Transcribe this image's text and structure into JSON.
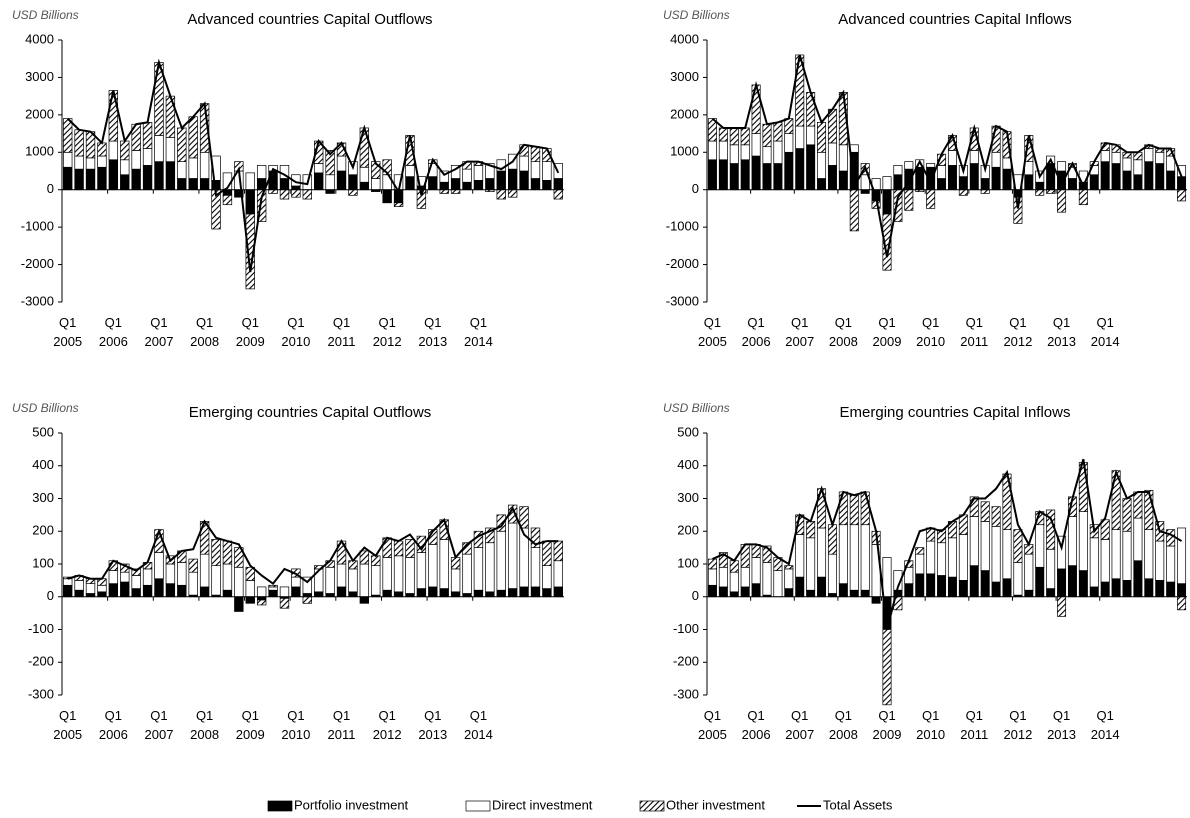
{
  "chart_data": [
    {
      "type": "bar",
      "title": "Advanced countries Capital Outflows",
      "y_label": "USD Billions",
      "stacked": true,
      "categories": [
        "Q1 2005",
        null,
        null,
        null,
        "Q1 2006",
        null,
        null,
        null,
        "Q1 2007",
        null,
        null,
        null,
        "Q1 2008",
        null,
        null,
        null,
        "Q1 2009",
        null,
        null,
        null,
        "Q1 2010",
        null,
        null,
        null,
        "Q1 2011",
        null,
        null,
        null,
        "Q1 2012",
        null,
        null,
        null,
        "Q1 2013",
        null,
        null,
        null,
        "Q1 2014",
        null,
        null,
        null,
        null,
        null,
        null,
        null
      ],
      "ylim": [
        -3000,
        4000
      ],
      "yticks": [
        -3000,
        -2000,
        -1000,
        0,
        1000,
        2000,
        3000,
        4000
      ],
      "series": [
        {
          "name": "Portfolio investment",
          "color": "#000000",
          "values": [
            600,
            550,
            550,
            600,
            800,
            400,
            550,
            650,
            750,
            750,
            300,
            300,
            300,
            250,
            -150,
            -200,
            -650,
            300,
            500,
            300,
            100,
            0,
            450,
            -100,
            500,
            400,
            200,
            -50,
            -350,
            -350,
            350,
            100,
            350,
            200,
            300,
            200,
            250,
            300,
            500,
            550,
            500,
            300,
            250,
            300
          ]
        },
        {
          "name": "Direct investment",
          "color": "#ffffff",
          "values": [
            400,
            350,
            300,
            300,
            500,
            400,
            500,
            450,
            700,
            650,
            450,
            550,
            700,
            650,
            450,
            500,
            450,
            350,
            150,
            350,
            300,
            400,
            250,
            400,
            400,
            350,
            400,
            300,
            400,
            400,
            300,
            250,
            350,
            300,
            350,
            350,
            400,
            400,
            300,
            400,
            400,
            450,
            500,
            400
          ]
        },
        {
          "name": "Other investment",
          "color": "#000000",
          "hatch": true,
          "values": [
            900,
            700,
            700,
            350,
            1350,
            500,
            700,
            700,
            1950,
            1100,
            900,
            1100,
            1300,
            -1050,
            -250,
            250,
            -2000,
            -850,
            -100,
            -250,
            -200,
            -250,
            600,
            650,
            350,
            -150,
            1050,
            450,
            400,
            -100,
            800,
            -500,
            100,
            -100,
            -100,
            200,
            100,
            -50,
            -250,
            -200,
            300,
            400,
            350,
            -250
          ]
        },
        {
          "name": "Total Assets",
          "type": "line",
          "color": "#000000",
          "values": [
            1900,
            1600,
            1550,
            1250,
            2650,
            1300,
            1750,
            1800,
            3400,
            2500,
            1650,
            1950,
            2300,
            -150,
            50,
            550,
            -2200,
            -200,
            550,
            400,
            200,
            150,
            1300,
            950,
            1250,
            600,
            1650,
            700,
            450,
            -50,
            1450,
            -150,
            800,
            400,
            550,
            750,
            750,
            650,
            550,
            750,
            1200,
            1150,
            1100,
            450
          ]
        }
      ]
    },
    {
      "type": "bar",
      "title": "Advanced countries Capital Inflows",
      "y_label": "USD Billions",
      "stacked": true,
      "categories": [
        "Q1 2005",
        null,
        null,
        null,
        "Q1 2006",
        null,
        null,
        null,
        "Q1 2007",
        null,
        null,
        null,
        "Q1 2008",
        null,
        null,
        null,
        "Q1 2009",
        null,
        null,
        null,
        "Q1 2010",
        null,
        null,
        null,
        "Q1 2011",
        null,
        null,
        null,
        "Q1 2012",
        null,
        null,
        null,
        "Q1 2013",
        null,
        null,
        null,
        "Q1 2014",
        null,
        null,
        null,
        null,
        null,
        null,
        null
      ],
      "ylim": [
        -3000,
        4000
      ],
      "yticks": [
        -3000,
        -2000,
        -1000,
        0,
        1000,
        2000,
        3000,
        4000
      ],
      "series": [
        {
          "name": "Portfolio investment",
          "color": "#000000",
          "values": [
            800,
            800,
            700,
            800,
            900,
            700,
            700,
            1000,
            1100,
            1200,
            300,
            650,
            500,
            1000,
            -100,
            -300,
            -650,
            400,
            550,
            600,
            600,
            300,
            650,
            350,
            700,
            300,
            600,
            550,
            -200,
            400,
            200,
            700,
            500,
            300,
            200,
            400,
            750,
            700,
            500,
            400,
            750,
            700,
            500,
            350
          ]
        },
        {
          "name": "Direct investment",
          "color": "#ffffff",
          "values": [
            500,
            500,
            500,
            400,
            600,
            450,
            600,
            500,
            600,
            500,
            700,
            600,
            700,
            200,
            400,
            300,
            350,
            250,
            200,
            200,
            100,
            350,
            400,
            300,
            350,
            350,
            400,
            300,
            400,
            350,
            300,
            200,
            250,
            300,
            300,
            250,
            300,
            300,
            350,
            400,
            350,
            300,
            400,
            300
          ]
        },
        {
          "name": "Other investment",
          "color": "#000000",
          "hatch": true,
          "values": [
            600,
            350,
            450,
            450,
            1300,
            600,
            500,
            400,
            1900,
            900,
            800,
            900,
            1400,
            -1100,
            300,
            -200,
            -1500,
            -850,
            -550,
            -50,
            -500,
            300,
            400,
            -150,
            600,
            -100,
            700,
            700,
            -700,
            700,
            -150,
            -100,
            -600,
            100,
            -400,
            100,
            200,
            200,
            150,
            200,
            100,
            100,
            200,
            -300
          ]
        },
        {
          "name": "Total Assets",
          "type": "line",
          "color": "#000000",
          "values": [
            1900,
            1650,
            1650,
            1650,
            2800,
            1750,
            1800,
            1900,
            3600,
            2600,
            1800,
            2150,
            2600,
            100,
            600,
            -200,
            -1800,
            -200,
            200,
            750,
            200,
            950,
            1450,
            500,
            1650,
            550,
            1700,
            1550,
            -500,
            1450,
            350,
            800,
            150,
            700,
            100,
            750,
            1250,
            1200,
            1000,
            1000,
            1200,
            1100,
            1100,
            350
          ]
        }
      ]
    },
    {
      "type": "bar",
      "title": "Emerging countries Capital Outflows",
      "y_label": "USD Billions",
      "stacked": true,
      "categories": [
        "Q1 2005",
        null,
        null,
        null,
        "Q1 2006",
        null,
        null,
        null,
        "Q1 2007",
        null,
        null,
        null,
        "Q1 2008",
        null,
        null,
        null,
        "Q1 2009",
        null,
        null,
        null,
        "Q1 2010",
        null,
        null,
        null,
        "Q1 2011",
        null,
        null,
        null,
        "Q1 2012",
        null,
        null,
        null,
        "Q1 2013",
        null,
        null,
        null,
        "Q1 2014",
        null,
        null,
        null,
        null,
        null,
        null,
        null
      ],
      "ylim": [
        -300,
        500
      ],
      "yticks": [
        -300,
        -200,
        -100,
        0,
        100,
        200,
        300,
        400,
        500
      ],
      "series": [
        {
          "name": "Portfolio investment",
          "color": "#000000",
          "values": [
            35,
            20,
            10,
            15,
            40,
            45,
            25,
            35,
            55,
            40,
            35,
            5,
            30,
            5,
            20,
            -45,
            -20,
            -10,
            20,
            -5,
            30,
            10,
            15,
            10,
            30,
            15,
            -20,
            5,
            20,
            15,
            10,
            25,
            30,
            25,
            15,
            10,
            20,
            15,
            20,
            25,
            30,
            30,
            25,
            30
          ]
        },
        {
          "name": "Direct investment",
          "color": "#ffffff",
          "values": [
            20,
            30,
            30,
            20,
            40,
            30,
            40,
            50,
            80,
            60,
            70,
            70,
            100,
            90,
            80,
            90,
            50,
            30,
            10,
            30,
            30,
            50,
            70,
            80,
            70,
            70,
            100,
            90,
            100,
            110,
            110,
            110,
            130,
            150,
            70,
            120,
            130,
            150,
            180,
            200,
            180,
            120,
            70,
            80
          ]
        },
        {
          "name": "Other investment",
          "color": "#000000",
          "hatch": true,
          "values": [
            5,
            15,
            15,
            20,
            30,
            25,
            20,
            20,
            70,
            25,
            35,
            40,
            100,
            80,
            70,
            60,
            40,
            -15,
            5,
            -30,
            25,
            -20,
            10,
            20,
            70,
            25,
            40,
            30,
            60,
            45,
            55,
            50,
            45,
            60,
            35,
            35,
            50,
            45,
            50,
            55,
            65,
            60,
            75,
            60
          ]
        },
        {
          "name": "Total Assets",
          "type": "line",
          "color": "#000000",
          "values": [
            55,
            65,
            55,
            55,
            110,
            95,
            80,
            105,
            200,
            110,
            140,
            145,
            230,
            180,
            170,
            160,
            95,
            65,
            40,
            85,
            70,
            45,
            80,
            110,
            170,
            110,
            150,
            125,
            180,
            170,
            190,
            145,
            200,
            235,
            120,
            160,
            185,
            200,
            215,
            270,
            190,
            160,
            170,
            170
          ]
        }
      ]
    },
    {
      "type": "bar",
      "title": "Emerging countries Capital Inflows",
      "y_label": "USD Billions",
      "stacked": true,
      "categories": [
        "Q1 2005",
        null,
        null,
        null,
        "Q1 2006",
        null,
        null,
        null,
        "Q1 2007",
        null,
        null,
        null,
        "Q1 2008",
        null,
        null,
        null,
        "Q1 2009",
        null,
        null,
        null,
        "Q1 2010",
        null,
        null,
        null,
        "Q1 2011",
        null,
        null,
        null,
        "Q1 2012",
        null,
        null,
        null,
        "Q1 2013",
        null,
        null,
        null,
        "Q1 2014",
        null,
        null,
        null,
        null,
        null,
        null,
        null
      ],
      "ylim": [
        -300,
        500
      ],
      "yticks": [
        -300,
        -200,
        -100,
        0,
        100,
        200,
        300,
        400,
        500
      ],
      "series": [
        {
          "name": "Portfolio investment",
          "color": "#000000",
          "values": [
            35,
            30,
            15,
            30,
            40,
            5,
            0,
            25,
            60,
            20,
            60,
            10,
            40,
            20,
            20,
            -20,
            -100,
            20,
            40,
            70,
            70,
            65,
            60,
            50,
            95,
            80,
            45,
            55,
            5,
            20,
            90,
            25,
            85,
            95,
            80,
            30,
            45,
            55,
            50,
            110,
            55,
            50,
            45,
            40
          ]
        },
        {
          "name": "Direct investment",
          "color": "#ffffff",
          "values": [
            50,
            60,
            60,
            60,
            80,
            100,
            80,
            60,
            130,
            160,
            150,
            120,
            180,
            200,
            200,
            160,
            120,
            60,
            50,
            60,
            100,
            100,
            120,
            140,
            150,
            150,
            170,
            150,
            100,
            110,
            130,
            120,
            100,
            150,
            180,
            150,
            130,
            150,
            150,
            130,
            150,
            120,
            110,
            170
          ]
        },
        {
          "name": "Other investment",
          "color": "#000000",
          "hatch": true,
          "values": [
            30,
            45,
            35,
            70,
            40,
            50,
            40,
            10,
            60,
            50,
            120,
            90,
            100,
            90,
            100,
            40,
            -230,
            -40,
            20,
            20,
            40,
            40,
            50,
            60,
            60,
            60,
            60,
            170,
            100,
            30,
            40,
            120,
            -60,
            60,
            150,
            40,
            60,
            180,
            100,
            80,
            120,
            60,
            50,
            -40
          ]
        },
        {
          "name": "Total Assets",
          "type": "line",
          "color": "#000000",
          "values": [
            115,
            130,
            110,
            160,
            160,
            150,
            120,
            100,
            250,
            230,
            330,
            220,
            320,
            310,
            320,
            200,
            -100,
            30,
            110,
            200,
            210,
            200,
            230,
            250,
            300,
            300,
            330,
            380,
            220,
            160,
            260,
            240,
            150,
            300,
            420,
            200,
            240,
            380,
            300,
            320,
            320,
            200,
            190,
            170
          ]
        }
      ]
    }
  ]
}
